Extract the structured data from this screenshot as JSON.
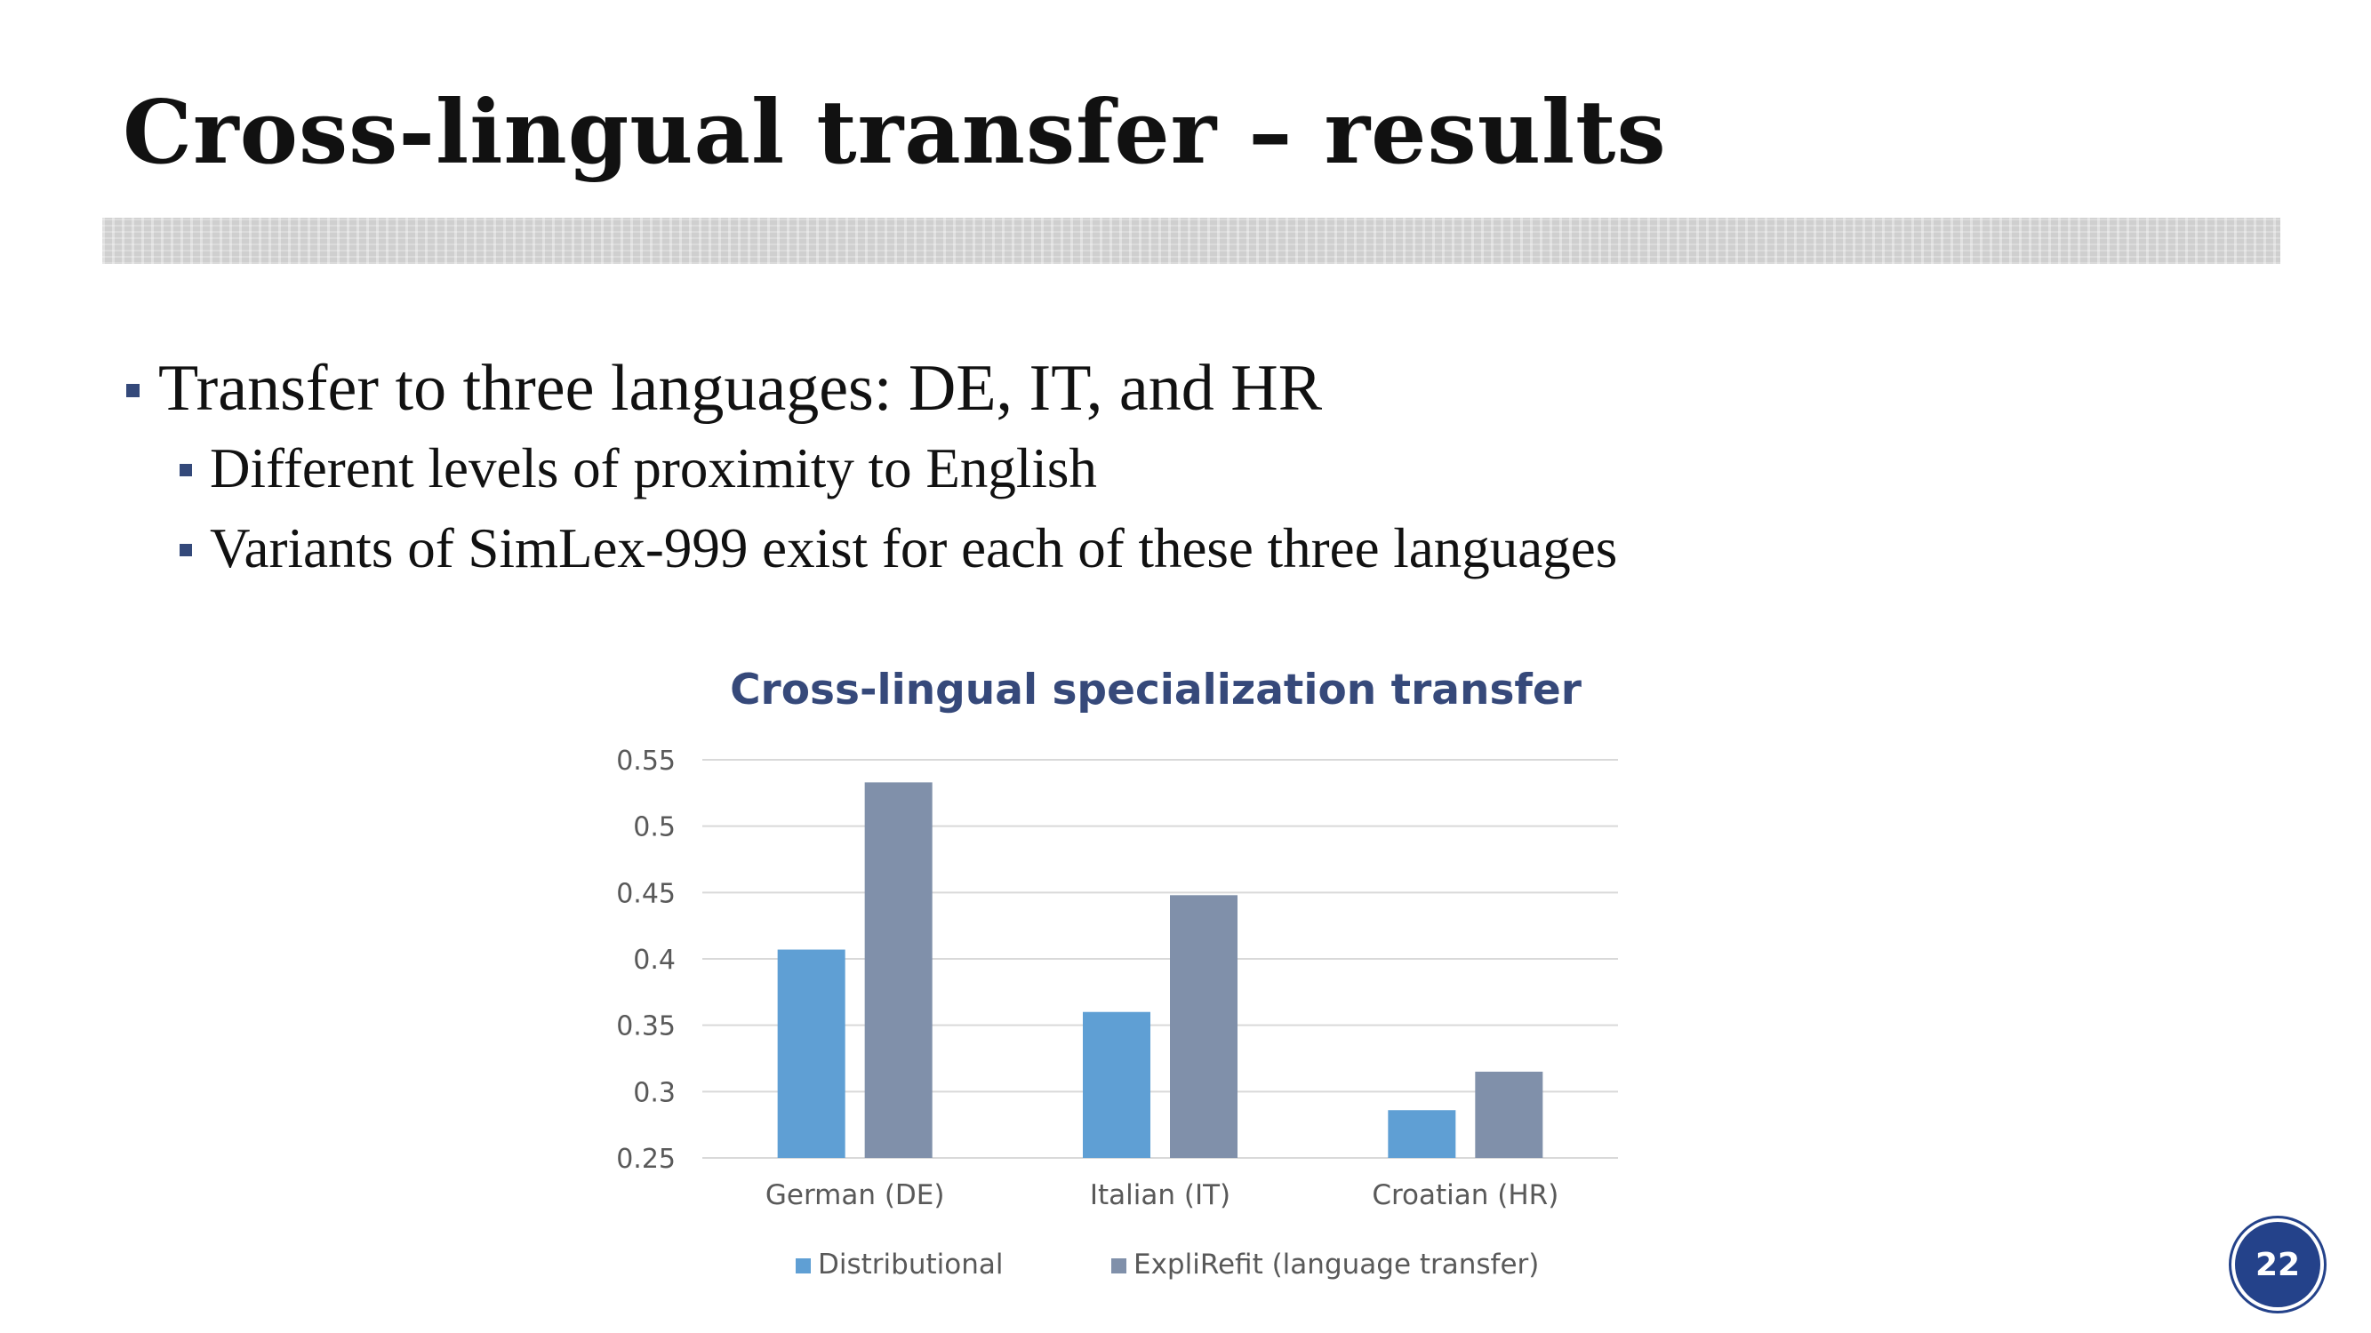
{
  "slide": {
    "title": "Cross-lingual transfer – results",
    "bullets": [
      {
        "level": 1,
        "text": "Transfer to three languages: DE, IT, and HR"
      },
      {
        "level": 2,
        "text": "Different levels of proximity to English"
      },
      {
        "level": 2,
        "text": "Variants of SimLex-999 exist for each of these three languages"
      }
    ],
    "page_number": "22"
  },
  "chart_data": {
    "type": "bar",
    "title": "Cross-lingual specialization transfer",
    "categories": [
      "German (DE)",
      "Italian (IT)",
      "Croatian (HR)"
    ],
    "series": [
      {
        "name": "Distributional",
        "color": "#5f9fd4",
        "values": [
          0.407,
          0.36,
          0.286
        ]
      },
      {
        "name": "ExpliRefit (language transfer)",
        "color": "#8090aa",
        "values": [
          0.533,
          0.448,
          0.315
        ]
      }
    ],
    "ylim": [
      0.25,
      0.55
    ],
    "yticks": [
      "0.25",
      "0.3",
      "0.35",
      "0.4",
      "0.45",
      "0.5",
      "0.55"
    ],
    "grid": true,
    "legend": "bottom",
    "title_color": "#36497a"
  }
}
